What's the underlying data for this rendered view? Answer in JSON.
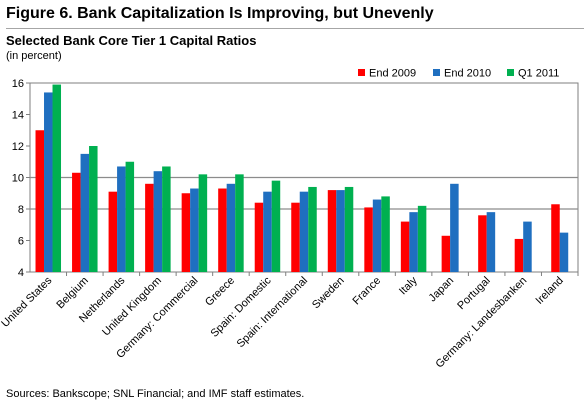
{
  "figure_title": "Figure 6. Bank Capitalization Is Improving, but Unevenly",
  "subtitle": "Selected Bank Core Tier 1 Capital Ratios",
  "unit_note": "(in percent)",
  "source_note": "Sources: Bankscope; SNL Financial; and IMF staff estimates.",
  "chart_data": {
    "type": "bar",
    "title": "Selected Bank Core Tier 1 Capital Ratios",
    "ylabel": "(in percent)",
    "xlabel": "",
    "ylim": [
      4,
      16
    ],
    "yticks": [
      4,
      6,
      8,
      10,
      12,
      14,
      16
    ],
    "categories": [
      "United States",
      "Belgium",
      "Netherlands",
      "United Kingdom",
      "Germany: Commercial",
      "Greece",
      "Spain: Domestic",
      "Spain: International",
      "Sweden",
      "France",
      "Italy",
      "Japan",
      "Portugal",
      "Germany: Landesbanken",
      "Ireland"
    ],
    "series": [
      {
        "name": "End 2009",
        "color": "#ff0000",
        "values": [
          13.0,
          10.3,
          9.1,
          9.6,
          9.0,
          9.3,
          8.4,
          8.4,
          9.2,
          8.1,
          7.2,
          6.3,
          7.6,
          6.1,
          8.3
        ]
      },
      {
        "name": "End 2010",
        "color": "#1f6fc0",
        "values": [
          15.4,
          11.5,
          10.7,
          10.4,
          9.3,
          9.6,
          9.1,
          9.1,
          9.2,
          8.6,
          7.8,
          9.6,
          7.8,
          7.2,
          6.5
        ]
      },
      {
        "name": "Q1 2011",
        "color": "#00b050",
        "values": [
          15.9,
          12.0,
          11.0,
          10.7,
          10.2,
          10.2,
          9.8,
          9.4,
          9.4,
          8.8,
          8.2,
          null,
          null,
          null,
          null
        ]
      }
    ],
    "reference_lines": [
      8,
      10
    ],
    "grid": false,
    "legend_position": "top-right"
  }
}
